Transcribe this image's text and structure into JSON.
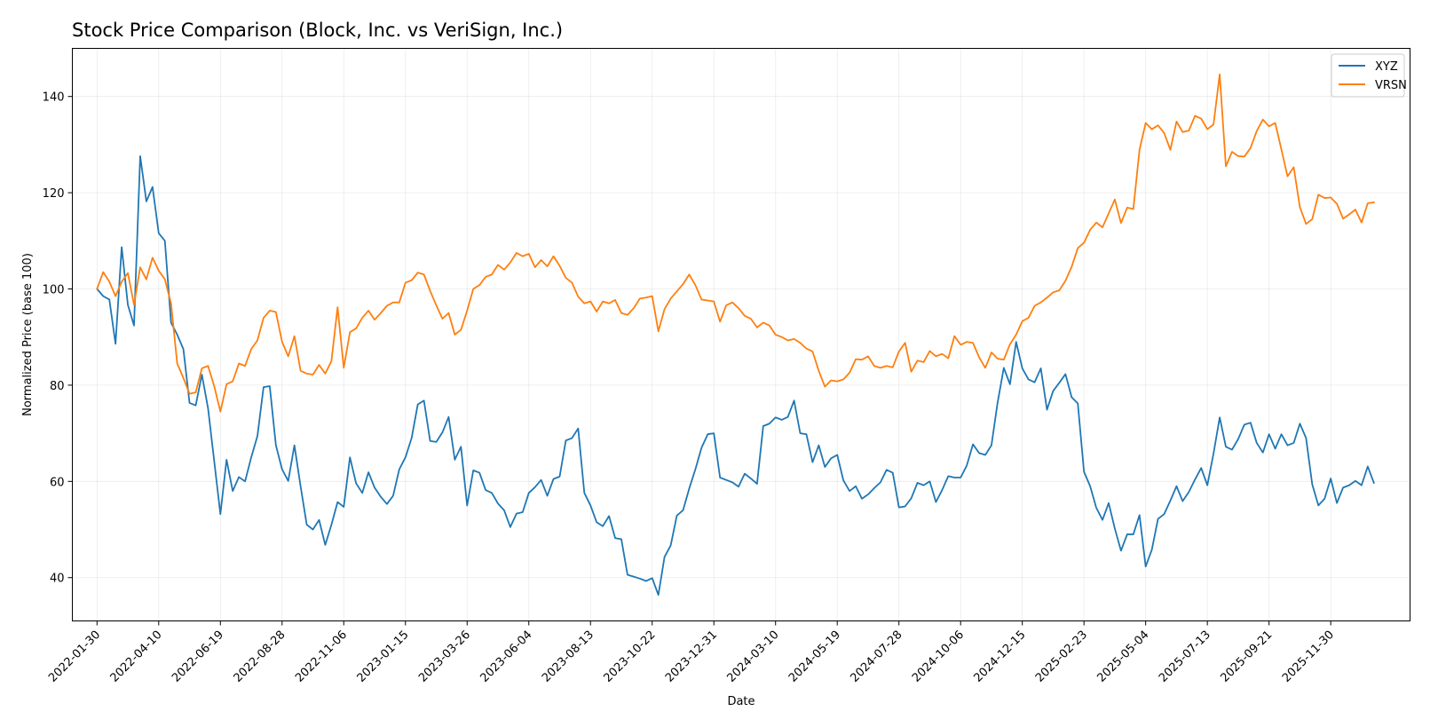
{
  "chart_data": {
    "type": "line",
    "title": "Stock Price Comparison (Block, Inc. vs VeriSign, Inc.)",
    "xlabel": "Date",
    "ylabel": "Normalized Price (base 100)",
    "x_start": "2022-01-30",
    "x_step_days": 7,
    "xlim": [
      "2022-01-02",
      "2026-02-28"
    ],
    "ylim": [
      31,
      150
    ],
    "xticks": [
      "2022-01-30",
      "2022-04-10",
      "2022-06-19",
      "2022-08-28",
      "2022-11-06",
      "2023-01-15",
      "2023-03-26",
      "2023-06-04",
      "2023-08-13",
      "2023-10-22",
      "2023-12-31",
      "2024-03-10",
      "2024-05-19",
      "2024-07-28",
      "2024-10-06",
      "2024-12-15",
      "2025-02-23",
      "2025-05-04",
      "2025-07-13",
      "2025-09-21",
      "2025-11-30"
    ],
    "yticks": [
      40,
      60,
      80,
      100,
      120,
      140
    ],
    "grid": true,
    "legend_position": "top-right",
    "series": [
      {
        "name": "XYZ",
        "color": "#1f77b4",
        "values": [
          100,
          98.5,
          97.8,
          88.6,
          108.7,
          96.7,
          92.4,
          127.6,
          118.2,
          121.2,
          111.6,
          110,
          93,
          90.5,
          87.5,
          76.3,
          75.8,
          82.2,
          75.2,
          64.2,
          53.2,
          64.5,
          58,
          60.9,
          60,
          65,
          69.4,
          79.6,
          79.8,
          67.5,
          62.5,
          60.1,
          67.5,
          59,
          51,
          50,
          52,
          46.8,
          51,
          55.7,
          54.7,
          65,
          59.6,
          57.6,
          61.9,
          58.7,
          56.8,
          55.3,
          57,
          62.5,
          65,
          69,
          76,
          76.8,
          68.4,
          68.2,
          70.2,
          73.4,
          64.5,
          67.2,
          55,
          62.3,
          61.8,
          58.2,
          57.6,
          55.4,
          54,
          50.5,
          53.3,
          53.6,
          57.6,
          58.8,
          60.3,
          57,
          60.5,
          61,
          68.5,
          69,
          71,
          57.6,
          55,
          51.5,
          50.7,
          52.8,
          48.2,
          48,
          40.6,
          40.2,
          39.8,
          39.3,
          39.9,
          36.4,
          44.3,
          46.7,
          52.9,
          54,
          58.5,
          62.5,
          67,
          69.8,
          70,
          60.8,
          60.3,
          59.8,
          58.9,
          61.6,
          60.6,
          59.5,
          71.5,
          72,
          73.3,
          72.8,
          73.4,
          76.8,
          70,
          69.8,
          64,
          67.5,
          63,
          64.8,
          65.5,
          60.2,
          58,
          59,
          56.4,
          57.3,
          58.6,
          59.8,
          62.4,
          61.8,
          54.6,
          54.8,
          56.5,
          59.7,
          59.2,
          60,
          55.7,
          58.2,
          61.1,
          60.8,
          60.8,
          63.3,
          67.7,
          65.9,
          65.5,
          67.5,
          76.4,
          83.6,
          80.2,
          89,
          83.5,
          81.2,
          80.6,
          83.5,
          74.9,
          78.8,
          80.5,
          82.3,
          77.5,
          76.2,
          62,
          59,
          54.5,
          52,
          55.5,
          50.2,
          45.6,
          49,
          49,
          53,
          42.3,
          45.8,
          52.2,
          53.2,
          56,
          59,
          55.9,
          57.8,
          60.4,
          62.8,
          59.2,
          65.8,
          73.3,
          67.2,
          66.6,
          68.8,
          71.8,
          72.2,
          68,
          66,
          69.8,
          66.8,
          69.8,
          67.5,
          68,
          72,
          69,
          59.4,
          55,
          56.4,
          60.6,
          55.5,
          58.7,
          59.2,
          60.1,
          59.2,
          63.1,
          59.7
        ],
        "label_line": true
      },
      {
        "name": "VRSN",
        "color": "#ff7f0e",
        "values": [
          100,
          103.5,
          101.5,
          98.5,
          101.5,
          103.3,
          96.7,
          104.5,
          102,
          106.5,
          103.8,
          102,
          97,
          84.5,
          81.5,
          78.2,
          78.5,
          83.5,
          84,
          79.8,
          74.5,
          80.2,
          80.8,
          84.5,
          84,
          87.5,
          89.3,
          94,
          95.5,
          95.2,
          89,
          86,
          90.2,
          83,
          82.4,
          82.2,
          84.2,
          82.4,
          85,
          96.2,
          83.6,
          91,
          91.8,
          94,
          95.5,
          93.6,
          95,
          96.5,
          97.2,
          97.2,
          101.3,
          101.8,
          103.4,
          103,
          99.6,
          96.6,
          93.8,
          95,
          90.5,
          91.5,
          95.5,
          100,
          100.8,
          102.5,
          103,
          105,
          104,
          105.5,
          107.5,
          106.8,
          107.3,
          104.5,
          106,
          104.7,
          106.8,
          104.8,
          102.3,
          101.3,
          98.4,
          97,
          97.4,
          95.3,
          97.4,
          97,
          97.7,
          95,
          94.6,
          96,
          98,
          98.2,
          98.5,
          91.2,
          95.8,
          98,
          99.5,
          101,
          103,
          100.8,
          97.8,
          97.6,
          97.4,
          93.2,
          96.6,
          97.2,
          96,
          94.4,
          93.8,
          92,
          93,
          92.4,
          90.5,
          90,
          89.3,
          89.6,
          88.8,
          87.6,
          87,
          83,
          79.7,
          81,
          80.8,
          81.2,
          82.6,
          85.4,
          85.3,
          86,
          84,
          83.6,
          84,
          83.7,
          87,
          88.8,
          82.8,
          85.1,
          84.8,
          87.1,
          86,
          86.5,
          85.6,
          90.2,
          88.4,
          89,
          88.8,
          85.8,
          83.6,
          86.8,
          85.5,
          85.3,
          88.5,
          90.5,
          93.3,
          94,
          96.5,
          97.2,
          98.2,
          99.3,
          99.7,
          101.7,
          104.6,
          108.5,
          109.6,
          112.3,
          113.8,
          112.8,
          115.7,
          118.6,
          113.7,
          116.9,
          116.6,
          128.9,
          134.5,
          133.2,
          134,
          132.4,
          128.9,
          134.8,
          132.6,
          132.9,
          136,
          135.4,
          133.2,
          134.2,
          144.6,
          125.5,
          128.5,
          127.6,
          127.5,
          129.3,
          132.8,
          135.2,
          133.8,
          134.5,
          129,
          123.4,
          125.3,
          117,
          113.5,
          114.5,
          119.6,
          118.9,
          119,
          117.7,
          114.6,
          115.5,
          116.5,
          113.8,
          117.8,
          118
        ]
      }
    ]
  }
}
